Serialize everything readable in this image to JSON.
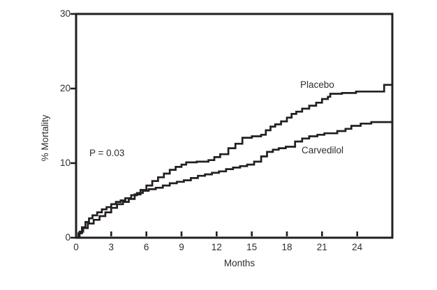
{
  "figure": {
    "background_color": "#ffffff",
    "line_color": "#231f20",
    "text_color": "#2e2e2e",
    "p_value_label": "P = 0.03"
  },
  "chart_data": {
    "type": "line",
    "subtype": "kaplan-meier-step",
    "title": "",
    "xlabel": "Months",
    "ylabel": "% Mortality",
    "xlim": [
      0,
      27
    ],
    "ylim": [
      0,
      30
    ],
    "x_ticks": [
      0,
      3,
      6,
      9,
      12,
      15,
      18,
      21,
      24
    ],
    "y_ticks": [
      0,
      10,
      20,
      30
    ],
    "grid": false,
    "legend_position": "inline-labels",
    "annotation": "P = 0.03",
    "series": [
      {
        "name": "Placebo",
        "x": [
          0,
          0.3,
          0.6,
          1.0,
          1.5,
          2.0,
          2.5,
          3.0,
          3.5,
          4.0,
          4.5,
          5.0,
          5.5,
          6.0,
          6.5,
          7.0,
          7.5,
          8.0,
          8.5,
          9.0,
          9.4,
          10.3,
          11.3,
          11.8,
          12.3,
          13.0,
          13.6,
          14.2,
          15.0,
          15.8,
          16.2,
          16.6,
          17.0,
          17.5,
          18.0,
          18.4,
          18.8,
          19.3,
          19.9,
          20.5,
          21.0,
          21.5,
          21.7,
          22.7,
          23.9,
          26.3,
          27.0
        ],
        "y": [
          0,
          0.8,
          1.3,
          1.9,
          2.4,
          2.9,
          3.4,
          4.0,
          4.5,
          4.8,
          5.2,
          5.8,
          6.4,
          7.0,
          7.6,
          8.1,
          8.6,
          9.1,
          9.5,
          9.8,
          10.1,
          10.2,
          10.4,
          10.8,
          11.2,
          12.0,
          12.6,
          13.4,
          13.6,
          13.8,
          14.4,
          14.9,
          15.2,
          15.6,
          16.1,
          16.6,
          16.9,
          17.3,
          17.7,
          18.1,
          18.6,
          18.9,
          19.3,
          19.4,
          19.6,
          20.5,
          20.5
        ]
      },
      {
        "name": "Carvedilol",
        "x": [
          0,
          0.2,
          0.5,
          0.8,
          1.1,
          1.4,
          1.8,
          2.2,
          2.6,
          3.0,
          3.4,
          3.8,
          4.2,
          4.7,
          5.2,
          5.7,
          6.2,
          6.8,
          7.4,
          8.0,
          8.6,
          9.2,
          9.8,
          10.4,
          11.0,
          11.6,
          12.2,
          12.8,
          13.4,
          14.0,
          14.6,
          15.2,
          15.8,
          16.3,
          16.8,
          17.3,
          17.9,
          18.7,
          19.3,
          19.9,
          20.6,
          21.2,
          22.3,
          23.0,
          23.5,
          24.3,
          25.2,
          27.0
        ],
        "y": [
          0,
          0.6,
          1.4,
          2.1,
          2.6,
          3.0,
          3.4,
          3.8,
          4.1,
          4.5,
          4.8,
          5.0,
          5.3,
          5.7,
          6.0,
          6.3,
          6.5,
          6.7,
          7.0,
          7.3,
          7.5,
          7.7,
          8.0,
          8.3,
          8.5,
          8.7,
          8.9,
          9.2,
          9.4,
          9.6,
          9.8,
          10.2,
          10.9,
          11.5,
          11.8,
          12.0,
          12.2,
          12.9,
          13.3,
          13.6,
          13.8,
          14.0,
          14.3,
          14.6,
          15.0,
          15.3,
          15.5,
          15.5
        ]
      }
    ]
  }
}
